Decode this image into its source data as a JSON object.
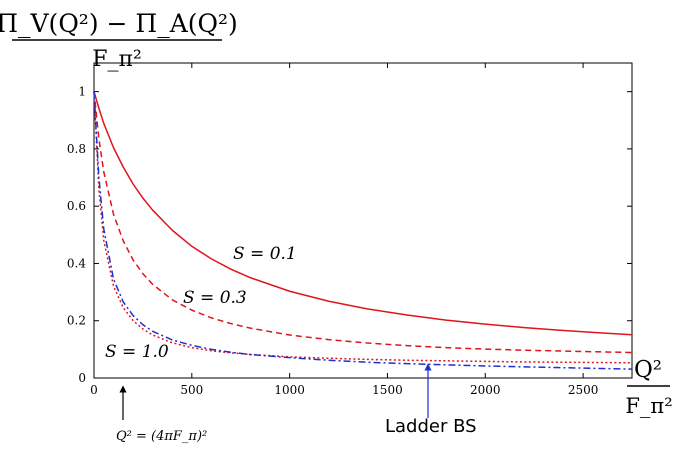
{
  "chart_data": {
    "type": "line",
    "ylabel": {
      "numerator": "Π_V(Q²) − Π_A(Q²)",
      "denominator": "F_π²"
    },
    "xlabel": {
      "numerator": "Q²",
      "denominator": "F_π²"
    },
    "xlim": [
      0,
      2750
    ],
    "ylim": [
      0,
      1.1
    ],
    "xticks": [
      0,
      500,
      1000,
      1500,
      2000,
      2500
    ],
    "yticks": [
      0,
      0.2,
      0.4,
      0.6,
      0.8,
      1
    ],
    "xtick_labels": [
      "0",
      "500",
      "1000",
      "1500",
      "2000",
      "2500"
    ],
    "ytick_labels": [
      "0",
      "0.2",
      "0.4",
      "0.6",
      "0.8",
      "1"
    ],
    "grid": false,
    "series": [
      {
        "name": "S = 0.1",
        "color": "#e0141b",
        "dash": "solid",
        "x": [
          0,
          25,
          50,
          100,
          150,
          200,
          250,
          300,
          400,
          500,
          600,
          700,
          800,
          1000,
          1200,
          1400,
          1600,
          1800,
          2000,
          2200,
          2400,
          2600,
          2750
        ],
        "y": [
          1.0,
          0.942,
          0.889,
          0.804,
          0.736,
          0.677,
          0.628,
          0.586,
          0.516,
          0.46,
          0.416,
          0.38,
          0.35,
          0.303,
          0.268,
          0.241,
          0.22,
          0.202,
          0.188,
          0.176,
          0.166,
          0.157,
          0.151
        ]
      },
      {
        "name": "S = 0.3",
        "color": "#e0141b",
        "dash": "dashed",
        "x": [
          0,
          25,
          50,
          100,
          150,
          200,
          250,
          300,
          400,
          500,
          600,
          700,
          800,
          1000,
          1200,
          1400,
          1600,
          1800,
          2000,
          2200,
          2400,
          2600,
          2750
        ],
        "y": [
          1.0,
          0.835,
          0.72,
          0.571,
          0.478,
          0.412,
          0.364,
          0.327,
          0.273,
          0.237,
          0.21,
          0.19,
          0.174,
          0.15,
          0.134,
          0.122,
          0.113,
          0.106,
          0.101,
          0.097,
          0.094,
          0.091,
          0.089
        ]
      },
      {
        "name": "S = 1.0",
        "color": "#e0141b",
        "dash": "dotted",
        "x": [
          0,
          25,
          50,
          100,
          150,
          200,
          250,
          300,
          400,
          500,
          600,
          700,
          800,
          1000,
          1200,
          1400,
          1600,
          1800,
          2000,
          2200,
          2400,
          2600,
          2750
        ],
        "y": [
          1.0,
          0.66,
          0.48,
          0.32,
          0.245,
          0.2,
          0.171,
          0.15,
          0.123,
          0.106,
          0.095,
          0.088,
          0.082,
          0.074,
          0.069,
          0.065,
          0.062,
          0.06,
          0.058,
          0.056,
          0.055,
          0.054,
          0.053
        ]
      },
      {
        "name": "Ladder BS",
        "color": "#1a2fd6",
        "dash": "dashdot",
        "x": [
          0,
          25,
          50,
          100,
          150,
          200,
          250,
          300,
          400,
          500,
          600,
          700,
          800,
          1000,
          1200,
          1400,
          1600,
          1800,
          2000,
          2200,
          2400,
          2600,
          2750
        ],
        "y": [
          1.0,
          0.7,
          0.52,
          0.345,
          0.265,
          0.218,
          0.186,
          0.163,
          0.133,
          0.114,
          0.1,
          0.09,
          0.082,
          0.071,
          0.062,
          0.055,
          0.05,
          0.046,
          0.042,
          0.039,
          0.036,
          0.033,
          0.031
        ]
      }
    ],
    "annotations": [
      {
        "text": "S = 0.1",
        "x": 800,
        "y": 0.385
      },
      {
        "text": "S = 0.3",
        "x": 470,
        "y": 0.23
      },
      {
        "text": "S = 1.0",
        "x": 50,
        "y": 0.08
      },
      {
        "text": "Q² = (4πF_π)²",
        "arrow_x": 150
      },
      {
        "text": "Ladder BS",
        "arrow_x": 1700
      }
    ]
  }
}
